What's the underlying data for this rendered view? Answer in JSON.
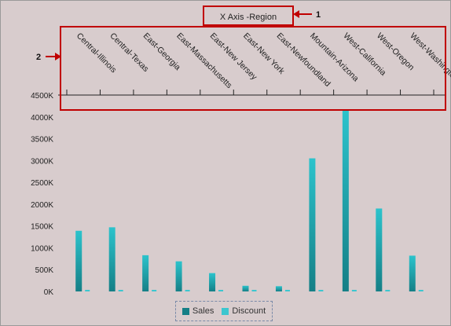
{
  "annotations": {
    "callout1": "1",
    "callout2": "2"
  },
  "chart_data": {
    "type": "bar",
    "title": "X Axis -Region",
    "xlabel": "X Axis -Region",
    "ylabel": "",
    "categories": [
      "Central-Illinois",
      "Central-Texas",
      "East-Georgia",
      "East-Massachusetts",
      "East-New Jersey",
      "East-New York",
      "East-Newfoundland",
      "Mountain-Arizona",
      "West-California",
      "West-Oregon",
      "West-Washington"
    ],
    "series": [
      {
        "name": "Sales",
        "values": [
          1390000,
          1470000,
          830000,
          690000,
          420000,
          130000,
          120000,
          3050000,
          4170000,
          1900000,
          820000
        ]
      },
      {
        "name": "Discount",
        "values": [
          10000,
          10000,
          8000,
          6000,
          5000,
          3000,
          3000,
          12000,
          15000,
          9000,
          6000
        ]
      }
    ],
    "ylim": [
      0,
      4500000
    ],
    "yticks": [
      "0K",
      "500K",
      "1000K",
      "1500K",
      "2000K",
      "2500K",
      "3000K",
      "3500K",
      "4000K",
      "4500K"
    ],
    "colors": {
      "Sales": "#1aa8b0",
      "Discount": "#3cc6cf",
      "highlight": "#c00000"
    },
    "grid": false,
    "legend": "bottom"
  }
}
